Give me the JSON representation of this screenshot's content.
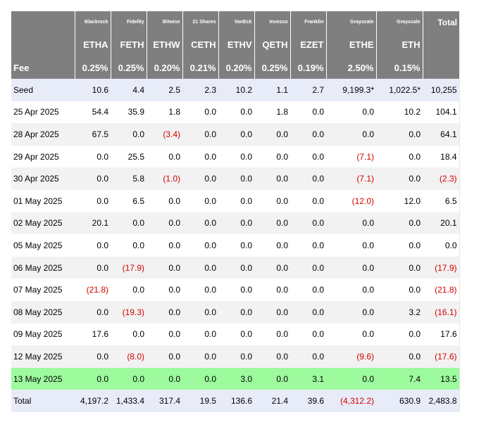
{
  "table": {
    "issuers": [
      "Blackrock",
      "Fidelity",
      "Bitwise",
      "21 Shares",
      "VanEck",
      "Invesco",
      "Franklin",
      "Grayscale",
      "Grayscale"
    ],
    "total_label": "Total",
    "tickers": [
      "ETHA",
      "FETH",
      "ETHW",
      "CETH",
      "ETHV",
      "QETH",
      "EZET",
      "ETHE",
      "ETH"
    ],
    "fee_label": "Fee",
    "fees": [
      "0.25%",
      "0.25%",
      "0.20%",
      "0.21%",
      "0.20%",
      "0.25%",
      "0.19%",
      "2.50%",
      "0.15%"
    ],
    "rows": [
      {
        "label": "Seed",
        "values": [
          "10.6",
          "4.4",
          "2.5",
          "2.3",
          "10.2",
          "1.1",
          "2.7",
          "9,199.3*",
          "1,022.5*",
          "10,255"
        ]
      },
      {
        "label": "25 Apr 2025",
        "values": [
          "54.4",
          "35.9",
          "1.8",
          "0.0",
          "0.0",
          "1.8",
          "0.0",
          "0.0",
          "10.2",
          "104.1"
        ]
      },
      {
        "label": "28 Apr 2025",
        "values": [
          "67.5",
          "0.0",
          "(3.4)",
          "0.0",
          "0.0",
          "0.0",
          "0.0",
          "0.0",
          "0.0",
          "64.1"
        ]
      },
      {
        "label": "29 Apr 2025",
        "values": [
          "0.0",
          "25.5",
          "0.0",
          "0.0",
          "0.0",
          "0.0",
          "0.0",
          "(7.1)",
          "0.0",
          "18.4"
        ]
      },
      {
        "label": "30 Apr 2025",
        "values": [
          "0.0",
          "5.8",
          "(1.0)",
          "0.0",
          "0.0",
          "0.0",
          "0.0",
          "(7.1)",
          "0.0",
          "(2.3)"
        ]
      },
      {
        "label": "01 May 2025",
        "values": [
          "0.0",
          "6.5",
          "0.0",
          "0.0",
          "0.0",
          "0.0",
          "0.0",
          "(12.0)",
          "12.0",
          "6.5"
        ]
      },
      {
        "label": "02 May 2025",
        "values": [
          "20.1",
          "0.0",
          "0.0",
          "0.0",
          "0.0",
          "0.0",
          "0.0",
          "0.0",
          "0.0",
          "20.1"
        ]
      },
      {
        "label": "05 May 2025",
        "values": [
          "0.0",
          "0.0",
          "0.0",
          "0.0",
          "0.0",
          "0.0",
          "0.0",
          "0.0",
          "0.0",
          "0.0"
        ]
      },
      {
        "label": "06 May 2025",
        "values": [
          "0.0",
          "(17.9)",
          "0.0",
          "0.0",
          "0.0",
          "0.0",
          "0.0",
          "0.0",
          "0.0",
          "(17.9)"
        ]
      },
      {
        "label": "07 May 2025",
        "values": [
          "(21.8)",
          "0.0",
          "0.0",
          "0.0",
          "0.0",
          "0.0",
          "0.0",
          "0.0",
          "0.0",
          "(21.8)"
        ]
      },
      {
        "label": "08 May 2025",
        "values": [
          "0.0",
          "(19.3)",
          "0.0",
          "0.0",
          "0.0",
          "0.0",
          "0.0",
          "0.0",
          "3.2",
          "(16.1)"
        ]
      },
      {
        "label": "09 May 2025",
        "values": [
          "17.6",
          "0.0",
          "0.0",
          "0.0",
          "0.0",
          "0.0",
          "0.0",
          "0.0",
          "0.0",
          "17.6"
        ]
      },
      {
        "label": "12 May 2025",
        "values": [
          "0.0",
          "(8.0)",
          "0.0",
          "0.0",
          "0.0",
          "0.0",
          "0.0",
          "(9.6)",
          "0.0",
          "(17.6)"
        ]
      },
      {
        "label": "13 May 2025",
        "values": [
          "0.0",
          "0.0",
          "0.0",
          "0.0",
          "3.0",
          "0.0",
          "3.1",
          "0.0",
          "7.4",
          "13.5"
        ]
      },
      {
        "label": "Total",
        "values": [
          "4,197.2",
          "1,433.4",
          "317.4",
          "19.5",
          "136.6",
          "21.4",
          "39.6",
          "(4,312.2)",
          "630.9",
          "2,483.8"
        ]
      }
    ],
    "colors": {
      "header_bg": "#7f7f7f",
      "header_text": "#ffffff",
      "seed_total_bg": "#e8ecf9",
      "highlight_bg": "#9dfa9d",
      "stripe_bg": "#f2f2f2",
      "negative_text": "#d40000"
    }
  }
}
